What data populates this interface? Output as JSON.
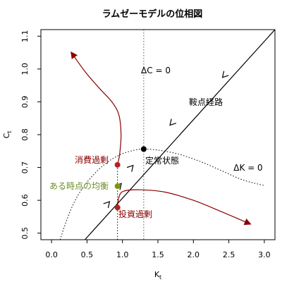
{
  "chart_data": {
    "type": "line",
    "title": "ラムゼーモデルの位相図",
    "xlabel": "K",
    "xlabel_sub": "t",
    "ylabel": "C",
    "ylabel_sub": "t",
    "xlim": [
      -0.15,
      3.15
    ],
    "ylim": [
      0.48,
      1.12
    ],
    "x_ticks": [
      0.0,
      0.5,
      1.0,
      1.5,
      2.0,
      2.5,
      3.0
    ],
    "x_tick_labels": [
      "0.0",
      "0.5",
      "1.0",
      "1.5",
      "2.0",
      "2.5",
      "3.0"
    ],
    "y_ticks": [
      0.5,
      0.6,
      0.7,
      0.8,
      0.9,
      1.0,
      1.1
    ],
    "y_tick_labels": [
      "0.5",
      "0.6",
      "0.7",
      "0.8",
      "0.9",
      "1.0",
      "1.1"
    ],
    "grid": false,
    "colors": {
      "dark_red": "#8b0000",
      "olive": "#7a9a01",
      "black": "#000000"
    },
    "saddle_path": {
      "x": [
        0.47,
        3.15
      ],
      "y": [
        0.48,
        1.12
      ],
      "arrows_toward_steady_state": true
    },
    "delta_C_zero_line": {
      "k": 1.3
    },
    "delta_K_zero_curve": {
      "x": [
        0.12,
        0.25,
        0.4,
        0.6,
        0.8,
        1.0,
        1.2,
        1.3,
        1.5,
        1.8,
        2.1,
        2.4,
        2.7,
        3.0
      ],
      "y": [
        0.48,
        0.56,
        0.625,
        0.68,
        0.718,
        0.742,
        0.754,
        0.756,
        0.753,
        0.74,
        0.718,
        0.69,
        0.662,
        0.645
      ]
    },
    "steady_state": {
      "k": 1.3,
      "c": 0.756
    },
    "vertical_segment": {
      "k": 0.93,
      "c_from": 0.48,
      "c_to": 0.72
    },
    "over_consumption_path": {
      "x": [
        0.93,
        0.96,
        0.98,
        0.95,
        0.85,
        0.68,
        0.48,
        0.28
      ],
      "y": [
        0.708,
        0.74,
        0.8,
        0.86,
        0.9,
        0.94,
        0.99,
        1.05
      ]
    },
    "over_investment_path": {
      "x": [
        0.93,
        0.95,
        1.02,
        1.25,
        1.6,
        2.0,
        2.4,
        2.8
      ],
      "y": [
        0.578,
        0.61,
        0.628,
        0.632,
        0.625,
        0.6,
        0.565,
        0.528
      ]
    },
    "points": [
      {
        "label": "消費過剰",
        "k": 0.93,
        "c": 0.708,
        "color": "#b22222"
      },
      {
        "label": "ある時点の均衡",
        "k": 0.93,
        "c": 0.643,
        "color": "#7a9a01"
      },
      {
        "label": "投資過剰",
        "k": 0.93,
        "c": 0.578,
        "color": "#b22222"
      },
      {
        "label": "定常状態",
        "k": 1.3,
        "c": 0.756,
        "color": "#000000"
      }
    ],
    "annotations": {
      "delta_c": "ΔC = 0",
      "delta_k": "ΔK = 0",
      "saddle": "鞍点経路",
      "steady": "定常状態",
      "over_consumption": "消費過剰",
      "equilibrium": "ある時点の均衡",
      "over_investment": "投資過剰"
    }
  }
}
